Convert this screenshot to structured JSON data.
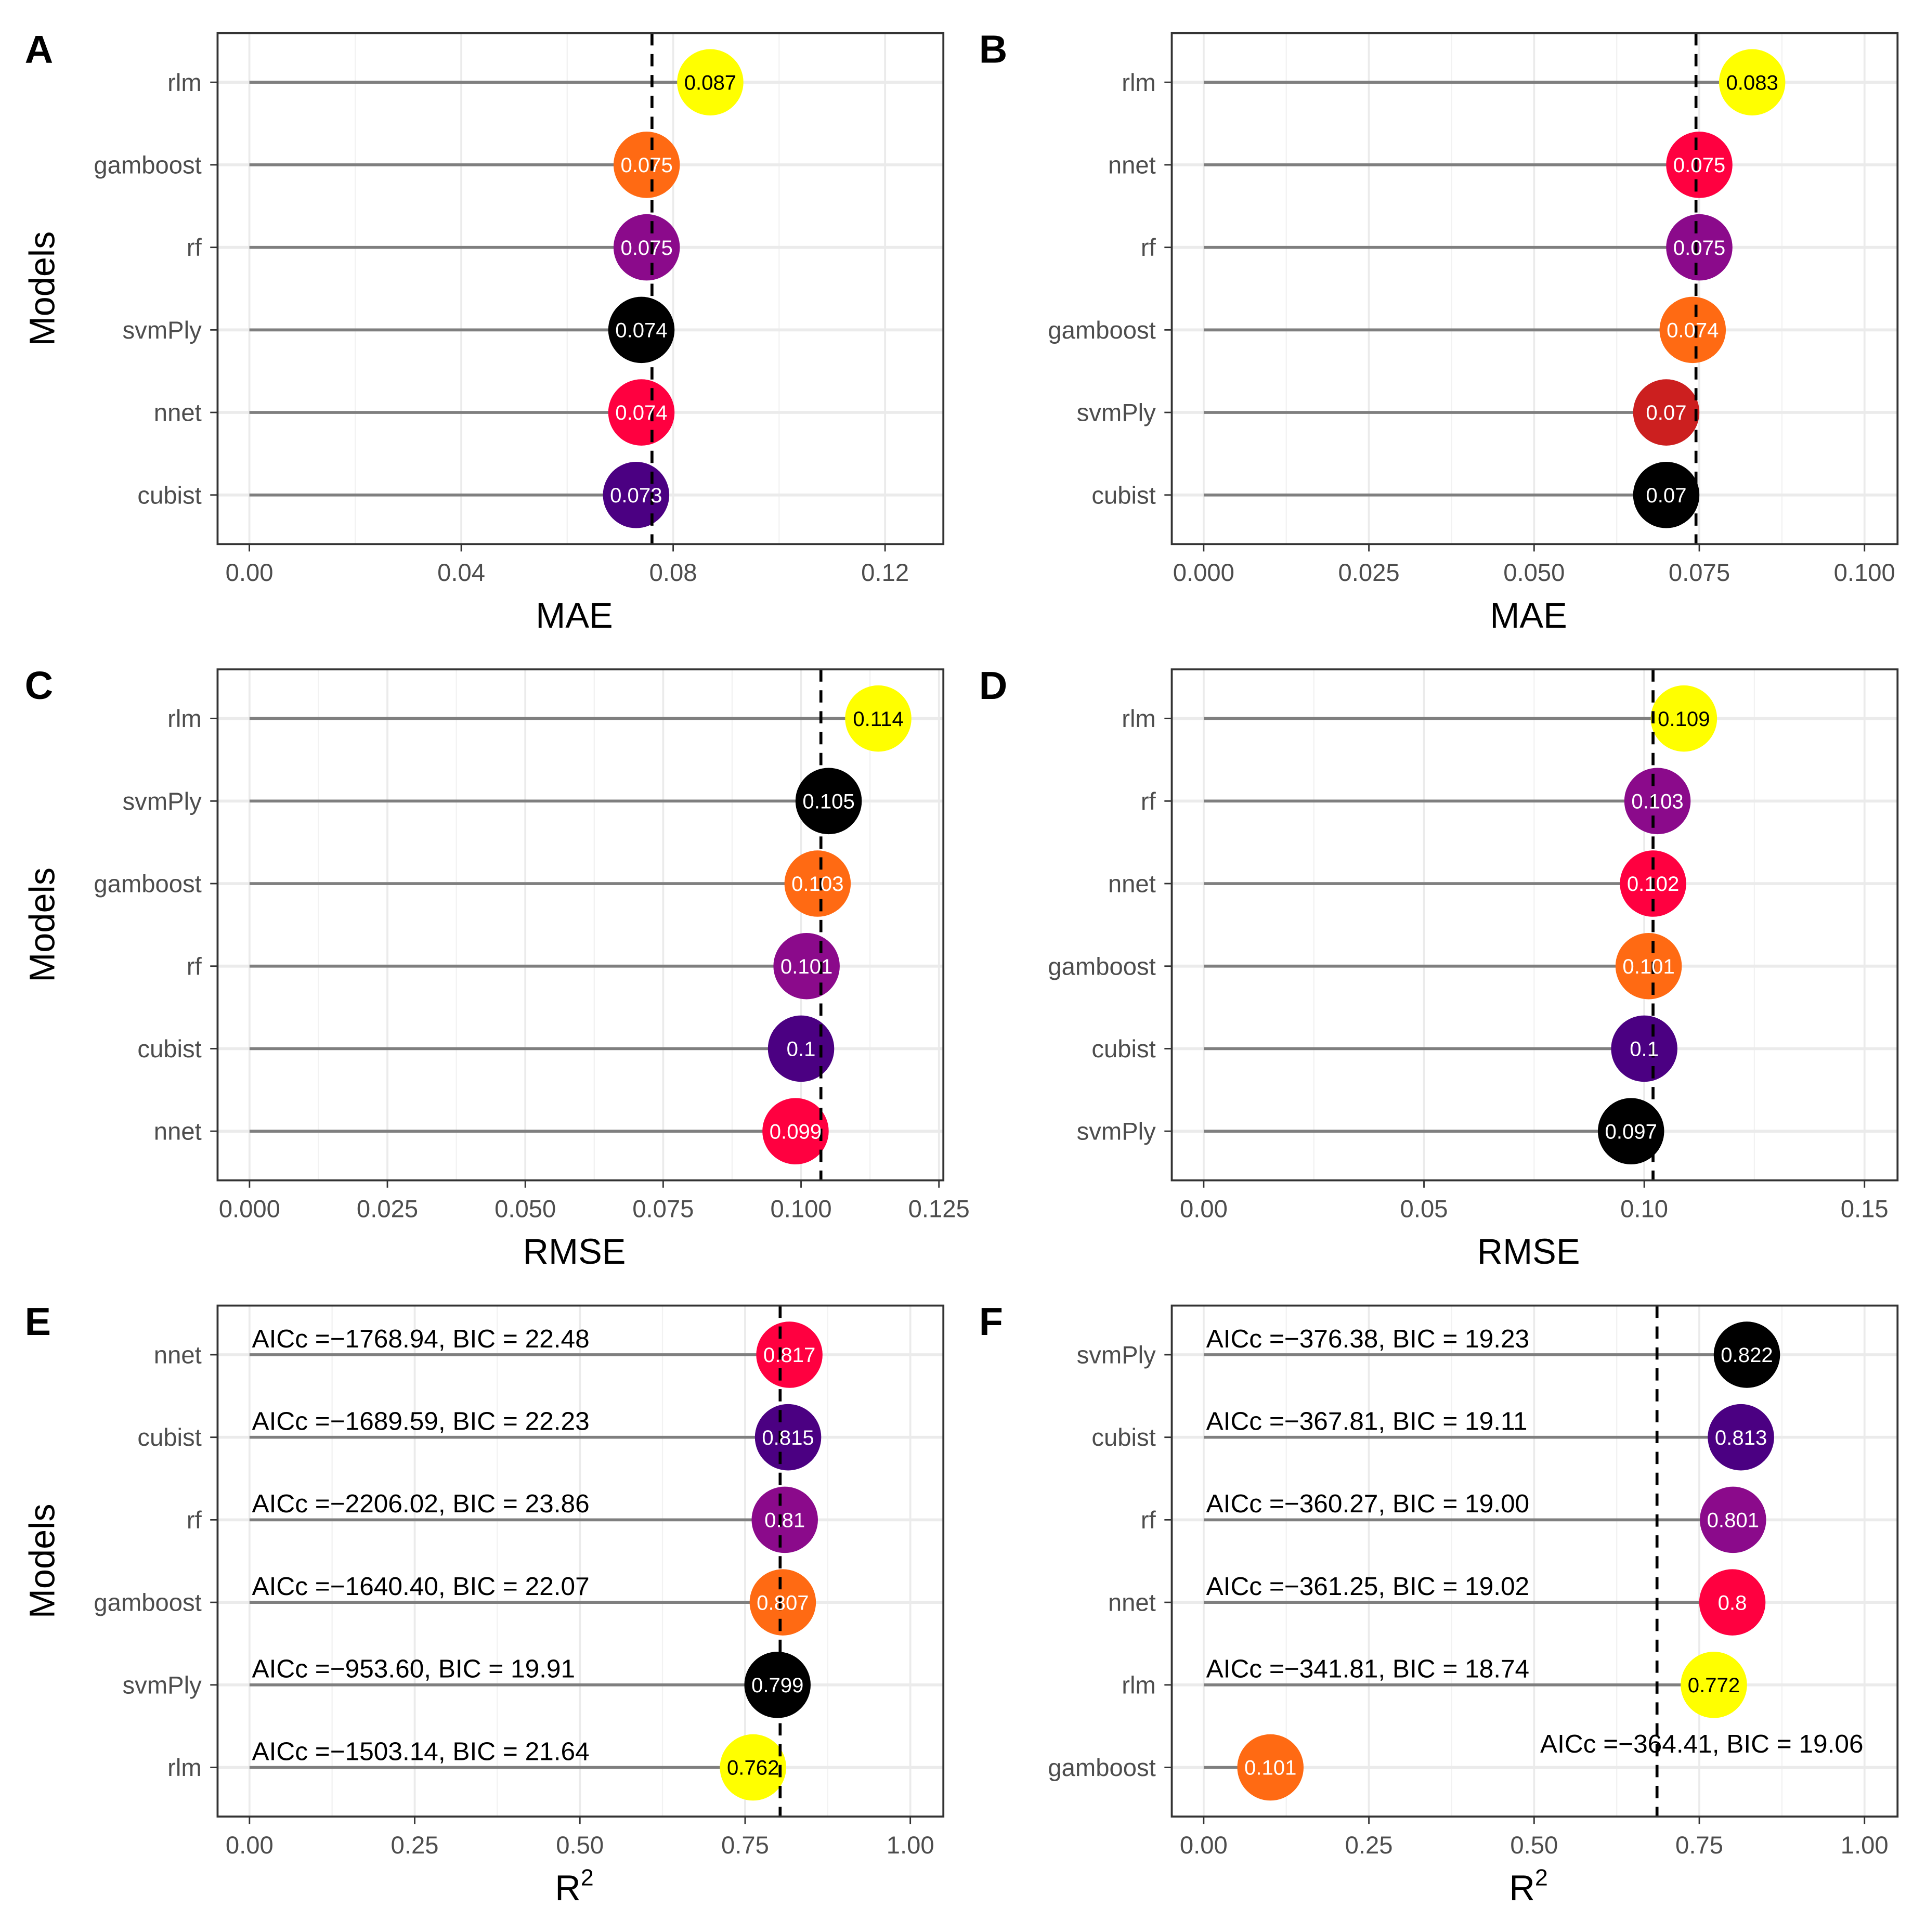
{
  "chart_data": [
    {
      "type": "lollipop",
      "panel": "A",
      "xlabel": "MAE",
      "ylabel": "Models",
      "xlim": [
        -0.006,
        0.131
      ],
      "ticks": [
        0,
        0.04,
        0.08,
        0.12
      ],
      "tick_labels": [
        "0.00",
        "0.04",
        "0.08",
        "0.12"
      ],
      "reference_line": 0.076,
      "points": [
        {
          "model": "rlm",
          "value": 0.087,
          "label": "0.087",
          "color": "#FFFF00"
        },
        {
          "model": "gamboost",
          "value": 0.075,
          "label": "0.075",
          "color": "#FF6A13"
        },
        {
          "model": "rf",
          "value": 0.075,
          "label": "0.075",
          "color": "#8B0A8B"
        },
        {
          "model": "svmPly",
          "value": 0.074,
          "label": "0.074",
          "color": "#000000"
        },
        {
          "model": "nnet",
          "value": 0.074,
          "label": "0.074",
          "color": "#FF0040"
        },
        {
          "model": "cubist",
          "value": 0.073,
          "label": "0.073",
          "color": "#4B0082"
        }
      ]
    },
    {
      "type": "lollipop",
      "panel": "B",
      "xlabel": "MAE",
      "ylabel": "",
      "xlim": [
        -0.00483,
        0.105
      ],
      "ticks": [
        0,
        0.025,
        0.05,
        0.075,
        0.1
      ],
      "tick_labels": [
        "0.000",
        "0.025",
        "0.050",
        "0.075",
        "0.100"
      ],
      "reference_line": 0.0745,
      "points": [
        {
          "model": "rlm",
          "value": 0.083,
          "label": "0.083",
          "color": "#FFFF00"
        },
        {
          "model": "nnet",
          "value": 0.075,
          "label": "0.075",
          "color": "#FF0040"
        },
        {
          "model": "rf",
          "value": 0.075,
          "label": "0.075",
          "color": "#8B0A8B"
        },
        {
          "model": "gamboost",
          "value": 0.074,
          "label": "0.074",
          "color": "#FF6A13"
        },
        {
          "model": "svmPly",
          "value": 0.07,
          "label": "0.07",
          "color": "#CC1F1F"
        },
        {
          "model": "cubist",
          "value": 0.07,
          "label": "0.07",
          "color": "#000000"
        }
      ]
    },
    {
      "type": "lollipop",
      "panel": "C",
      "xlabel": "RMSE",
      "ylabel": "Models",
      "xlim": [
        -0.00579,
        0.1258
      ],
      "ticks": [
        0,
        0.025,
        0.05,
        0.075,
        0.1,
        0.125
      ],
      "tick_labels": [
        "0.000",
        "0.025",
        "0.050",
        "0.075",
        "0.100",
        "0.125"
      ],
      "reference_line": 0.1036,
      "points": [
        {
          "model": "rlm",
          "value": 0.114,
          "label": "0.114",
          "color": "#FFFF00"
        },
        {
          "model": "svmPly",
          "value": 0.105,
          "label": "0.105",
          "color": "#000000"
        },
        {
          "model": "gamboost",
          "value": 0.103,
          "label": "0.103",
          "color": "#FF6A13"
        },
        {
          "model": "rf",
          "value": 0.101,
          "label": "0.101",
          "color": "#8B0A8B"
        },
        {
          "model": "cubist",
          "value": 0.1,
          "label": "0.1",
          "color": "#4B0082"
        },
        {
          "model": "nnet",
          "value": 0.099,
          "label": "0.099",
          "color": "#FF0040"
        }
      ]
    },
    {
      "type": "lollipop",
      "panel": "D",
      "xlabel": "RMSE",
      "ylabel": "",
      "xlim": [
        -0.00725,
        0.1575
      ],
      "ticks": [
        0,
        0.05,
        0.1,
        0.15
      ],
      "tick_labels": [
        "0.00",
        "0.05",
        "0.10",
        "0.15"
      ],
      "reference_line": 0.102,
      "points": [
        {
          "model": "rlm",
          "value": 0.109,
          "label": "0.109",
          "color": "#FFFF00"
        },
        {
          "model": "rf",
          "value": 0.103,
          "label": "0.103",
          "color": "#8B0A8B"
        },
        {
          "model": "nnet",
          "value": 0.102,
          "label": "0.102",
          "color": "#FF0040"
        },
        {
          "model": "gamboost",
          "value": 0.101,
          "label": "0.101",
          "color": "#FF6A13"
        },
        {
          "model": "cubist",
          "value": 0.1,
          "label": "0.1",
          "color": "#4B0082"
        },
        {
          "model": "svmPly",
          "value": 0.097,
          "label": "0.097",
          "color": "#000000"
        }
      ]
    },
    {
      "type": "lollipop",
      "panel": "E",
      "xlabel": "R",
      "xlabel_sup": "2",
      "ylabel": "Models",
      "xlim": [
        -0.0483,
        1.05
      ],
      "ticks": [
        0,
        0.25,
        0.5,
        0.75,
        1
      ],
      "tick_labels": [
        "0.00",
        "0.25",
        "0.50",
        "0.75",
        "1.00"
      ],
      "reference_line": 0.803,
      "points": [
        {
          "model": "nnet",
          "value": 0.817,
          "label": "0.817",
          "color": "#FF0040",
          "annotation": "AICc =−1768.94, BIC = 22.48"
        },
        {
          "model": "cubist",
          "value": 0.815,
          "label": "0.815",
          "color": "#4B0082",
          "annotation": "AICc =−1689.59, BIC = 22.23"
        },
        {
          "model": "rf",
          "value": 0.81,
          "label": "0.81",
          "color": "#8B0A8B",
          "annotation": "AICc =−2206.02, BIC = 23.86"
        },
        {
          "model": "gamboost",
          "value": 0.807,
          "label": "0.807",
          "color": "#FF6A13",
          "annotation": "AICc =−1640.40, BIC = 22.07"
        },
        {
          "model": "svmPly",
          "value": 0.799,
          "label": "0.799",
          "color": "#000000",
          "annotation": "AICc =−953.60, BIC = 19.91"
        },
        {
          "model": "rlm",
          "value": 0.762,
          "label": "0.762",
          "color": "#FFFF00",
          "annotation": "AICc =−1503.14, BIC = 21.64"
        }
      ]
    },
    {
      "type": "lollipop",
      "panel": "F",
      "xlabel": "R",
      "xlabel_sup": "2",
      "ylabel": "",
      "xlim": [
        -0.0483,
        1.05
      ],
      "ticks": [
        0,
        0.25,
        0.5,
        0.75,
        1
      ],
      "tick_labels": [
        "0.00",
        "0.25",
        "0.50",
        "0.75",
        "1.00"
      ],
      "reference_line": 0.686,
      "points": [
        {
          "model": "svmPly",
          "value": 0.822,
          "label": "0.822",
          "color": "#000000",
          "annotation": "AICc =−376.38, BIC = 19.23"
        },
        {
          "model": "cubist",
          "value": 0.813,
          "label": "0.813",
          "color": "#4B0082",
          "annotation": "AICc =−367.81, BIC = 19.11"
        },
        {
          "model": "rf",
          "value": 0.801,
          "label": "0.801",
          "color": "#8B0A8B",
          "annotation": "AICc =−360.27, BIC = 19.00"
        },
        {
          "model": "nnet",
          "value": 0.8,
          "label": "0.8",
          "color": "#FF0040",
          "annotation": "AICc =−361.25, BIC = 19.02"
        },
        {
          "model": "rlm",
          "value": 0.772,
          "label": "0.772",
          "color": "#FFFF00",
          "annotation": "AICc =−341.81, BIC = 18.74"
        },
        {
          "model": "gamboost",
          "value": 0.101,
          "label": "0.101",
          "color": "#FF6A13",
          "annotation": "AICc =−364.41, BIC = 19.06"
        }
      ]
    }
  ]
}
